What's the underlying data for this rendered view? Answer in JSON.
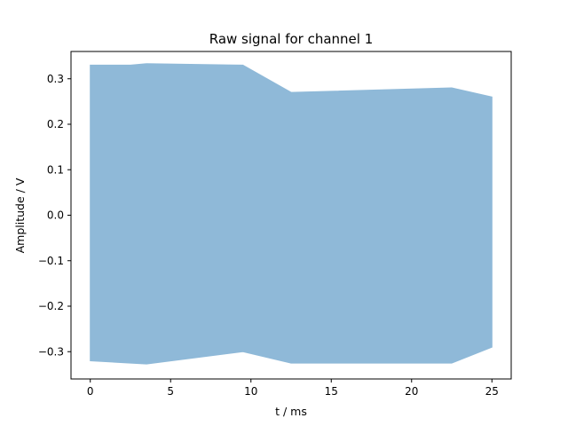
{
  "chart_data": {
    "type": "line",
    "title": "Raw signal for channel 1",
    "xlabel": "t / ms",
    "ylabel": "Amplitude / V",
    "xlim": [
      -1.2,
      26.2
    ],
    "ylim": [
      -0.36,
      0.36
    ],
    "xticks": [
      0,
      5,
      10,
      15,
      20,
      25
    ],
    "xtick_labels": [
      "0",
      "5",
      "10",
      "15",
      "20",
      "25"
    ],
    "yticks": [
      -0.3,
      -0.2,
      -0.1,
      0.0,
      0.1,
      0.2,
      0.3
    ],
    "ytick_labels": [
      "−0.3",
      "−0.2",
      "−0.1",
      "0.0",
      "0.1",
      "0.2",
      "0.3"
    ],
    "grid": false,
    "legend": "none",
    "series": [
      {
        "color": "#8fb9d8",
        "x_range": [
          0,
          25
        ],
        "envelope_max": 0.33,
        "envelope_min": -0.325,
        "description_points": [
          {
            "x": 0,
            "min": -0.32,
            "max": 0.33
          },
          {
            "x": 2.5,
            "min": -0.325,
            "max": 0.33
          },
          {
            "x": 3.5,
            "min": -0.327,
            "max": 0.333
          },
          {
            "x": 9.5,
            "min": -0.3,
            "max": 0.33
          },
          {
            "x": 12.5,
            "min": -0.325,
            "max": 0.27
          },
          {
            "x": 22.5,
            "min": -0.325,
            "max": 0.28
          },
          {
            "x": 25,
            "min": -0.29,
            "max": 0.26
          }
        ]
      }
    ]
  }
}
